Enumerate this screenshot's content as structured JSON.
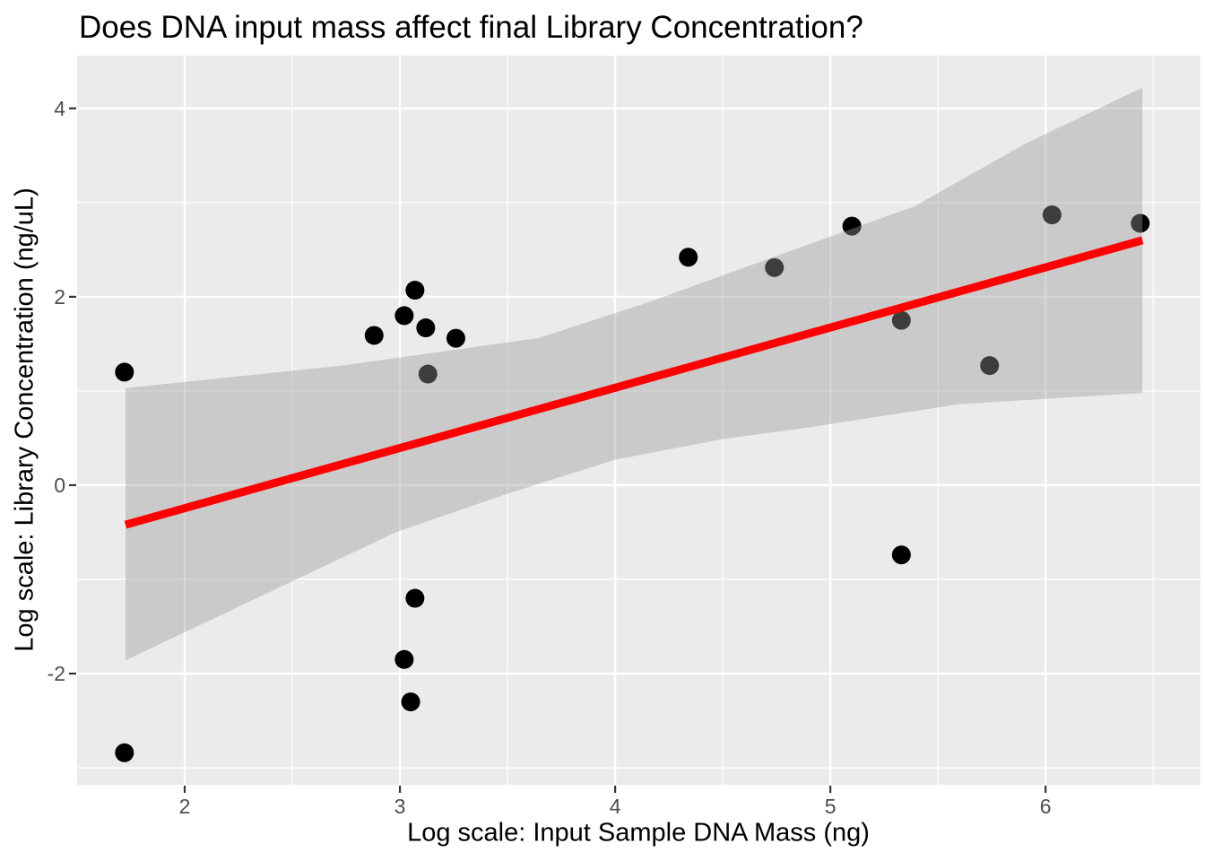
{
  "chart_data": {
    "type": "scatter",
    "title": "Does DNA input mass affect final Library Concentration?",
    "xlabel": "Log scale: Input Sample DNA Mass (ng)",
    "ylabel": "Log scale: Library Concentration (ng/uL)",
    "xlim": [
      1.5,
      6.72
    ],
    "ylim": [
      -3.18,
      4.56
    ],
    "x_ticks": [
      2,
      3,
      4,
      5,
      6
    ],
    "x_minor_ticks": [
      2.5,
      3.5,
      4.5,
      5.5,
      6.5
    ],
    "y_ticks": [
      -2,
      0,
      2,
      4
    ],
    "y_minor_ticks": [
      -3,
      -1,
      1,
      3
    ],
    "grid": true,
    "legend": "none",
    "points": [
      [
        1.72,
        1.2
      ],
      [
        1.72,
        -2.84
      ],
      [
        2.88,
        1.59
      ],
      [
        3.02,
        1.8
      ],
      [
        3.02,
        -1.85
      ],
      [
        3.05,
        -2.3
      ],
      [
        3.07,
        2.07
      ],
      [
        3.07,
        -1.2
      ],
      [
        3.12,
        1.67
      ],
      [
        3.13,
        1.18
      ],
      [
        3.26,
        1.56
      ],
      [
        4.34,
        2.42
      ],
      [
        4.74,
        2.31
      ],
      [
        5.1,
        2.75
      ],
      [
        5.33,
        1.75
      ],
      [
        5.33,
        -0.74
      ],
      [
        5.74,
        1.27
      ],
      [
        6.03,
        2.87
      ],
      [
        6.44,
        2.78
      ]
    ],
    "trend_line": {
      "fit": "linear",
      "x_start": 1.725,
      "y_start": -0.42,
      "x_end": 6.45,
      "y_end": 2.6
    },
    "confidence_band": {
      "upper": [
        [
          1.725,
          1.03
        ],
        [
          2.73,
          1.27
        ],
        [
          3.64,
          1.56
        ],
        [
          4.14,
          1.93
        ],
        [
          4.77,
          2.45
        ],
        [
          5.39,
          2.96
        ],
        [
          5.91,
          3.63
        ],
        [
          6.45,
          4.22
        ]
      ],
      "lower": [
        [
          1.725,
          -1.86
        ],
        [
          2.98,
          -0.5
        ],
        [
          3.5,
          -0.09
        ],
        [
          4.0,
          0.27
        ],
        [
          4.5,
          0.49
        ],
        [
          4.89,
          0.61
        ],
        [
          5.6,
          0.86
        ],
        [
          6.45,
          0.98
        ]
      ]
    },
    "colors": {
      "panel_background": "#EBEBEB",
      "gridline": "#FFFFFF",
      "point": "#000000",
      "band_fill": "#999999",
      "band_opacity": 0.4,
      "trend_line": "#FF0000",
      "tick_mark": "#333333",
      "tick_label": "#4D4D4D",
      "title_text": "#000000"
    }
  }
}
